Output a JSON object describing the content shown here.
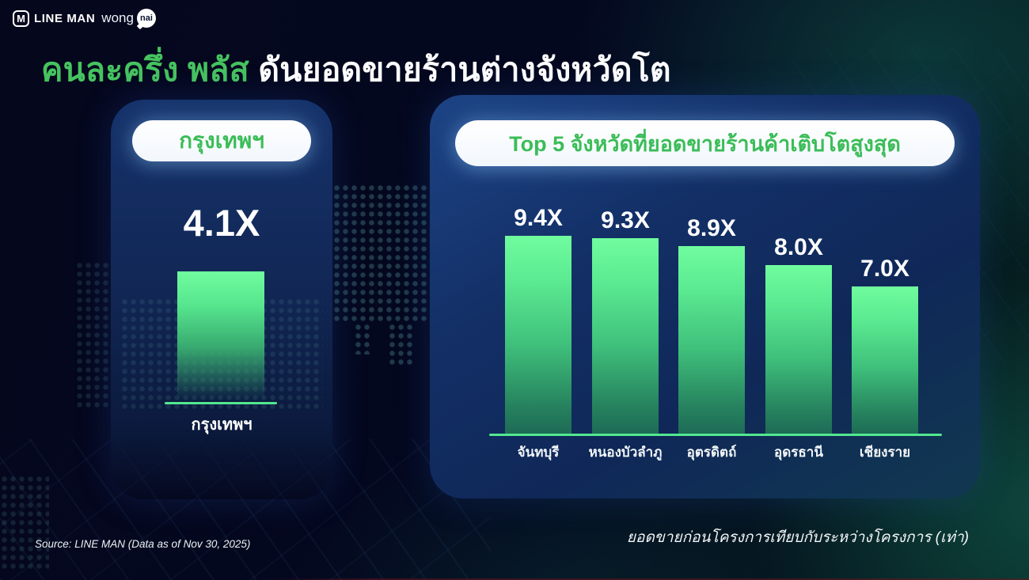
{
  "logo": {
    "m_letter": "M",
    "lineman": "LINE MAN",
    "wong": "wong",
    "nai": "nai"
  },
  "title": {
    "highlight": "คนละครึ่ง พลัส",
    "rest": " ดันยอดขายร้านต่างจังหวัดโต"
  },
  "left_card": {
    "pill_label": "กรุงเทพฯ"
  },
  "right_card": {
    "pill_label": "Top 5 จังหวัดที่ยอดขายร้านค้าเติบโตสูงสุด"
  },
  "footer": {
    "source": "Source: LINE MAN (Data as of Nov 30, 2025)",
    "caption": "ยอดขายก่อนโครงการเทียบกับระหว่างโครงการ (เท่า)"
  },
  "colors": {
    "accent_green": "#46c35f",
    "pill_text_green": "#3bbd58",
    "bar_top_green": "#70fc9e",
    "baseline_green": "#52e88f",
    "card_navy": "#132f66",
    "background_dark": "#04081f"
  },
  "chart_data": [
    {
      "type": "bar",
      "title": "กรุงเทพฯ",
      "categories": [
        "กรุงเทพฯ"
      ],
      "values": [
        4.1
      ],
      "labels": [
        "4.1X"
      ],
      "xlabel": "",
      "ylabel": "",
      "ylim": [
        0,
        4.5
      ],
      "grid": false,
      "legend": false
    },
    {
      "type": "bar",
      "title": "Top 5 จังหวัดที่ยอดขายร้านค้าเติบโตสูงสุด",
      "categories": [
        "จันทบุรี",
        "หนองบัวลำภู",
        "อุตรดิตถ์",
        "อุดรธานี",
        "เชียงราย"
      ],
      "values": [
        9.4,
        9.3,
        8.9,
        8.0,
        7.0
      ],
      "labels": [
        "9.4X",
        "9.3X",
        "8.9X",
        "8.0X",
        "7.0X"
      ],
      "xlabel": "",
      "ylabel": "",
      "ylim": [
        0,
        10
      ],
      "grid": false,
      "legend": false,
      "note": "ยอดขายก่อนโครงการเทียบกับระหว่างโครงการ (เท่า)"
    }
  ]
}
